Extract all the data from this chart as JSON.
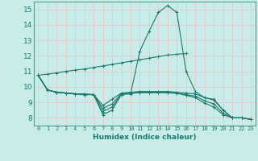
{
  "xlabel": "Humidex (Indice chaleur)",
  "ylabel": "",
  "bg_color": "#c8ecea",
  "grid_color": "#e8c8c8",
  "line_color": "#1a7a6e",
  "xlim": [
    -0.5,
    23.5
  ],
  "ylim": [
    7.5,
    15.5
  ],
  "yticks": [
    8,
    9,
    10,
    11,
    12,
    13,
    14,
    15
  ],
  "xticks": [
    0,
    1,
    2,
    3,
    4,
    5,
    6,
    7,
    8,
    9,
    10,
    11,
    12,
    13,
    14,
    15,
    16,
    17,
    18,
    19,
    20,
    21,
    22,
    23
  ],
  "lines": [
    {
      "x": [
        0,
        1,
        2,
        3,
        4,
        5,
        6,
        7,
        8,
        9,
        10,
        11,
        12,
        13,
        14,
        15,
        16
      ],
      "y": [
        10.75,
        10.82,
        10.9,
        11.0,
        11.08,
        11.15,
        11.25,
        11.35,
        11.45,
        11.55,
        11.65,
        11.75,
        11.85,
        11.95,
        12.05,
        12.1,
        12.15
      ]
    },
    {
      "x": [
        0,
        1,
        2,
        3,
        4,
        5,
        6,
        7,
        8,
        9,
        10,
        11,
        12,
        13,
        14,
        15,
        16,
        17,
        18,
        19,
        20,
        21,
        22,
        23
      ],
      "y": [
        10.75,
        9.8,
        9.65,
        9.6,
        9.55,
        9.55,
        9.5,
        8.2,
        8.5,
        9.5,
        9.55,
        12.3,
        13.6,
        14.8,
        15.25,
        14.8,
        11.0,
        9.7,
        9.3,
        9.2,
        8.5,
        8.0,
        8.0,
        7.9
      ]
    },
    {
      "x": [
        0,
        1,
        2,
        3,
        4,
        5,
        6,
        7,
        8,
        9,
        10,
        11,
        12,
        13,
        14,
        15,
        16,
        17,
        18,
        19,
        20,
        21,
        22,
        23
      ],
      "y": [
        10.75,
        9.8,
        9.65,
        9.6,
        9.55,
        9.5,
        9.5,
        8.8,
        9.2,
        9.6,
        9.65,
        9.7,
        9.7,
        9.7,
        9.7,
        9.65,
        9.6,
        9.55,
        9.3,
        9.15,
        8.5,
        8.0,
        8.0,
        7.9
      ]
    },
    {
      "x": [
        0,
        1,
        2,
        3,
        4,
        5,
        6,
        7,
        8,
        9,
        10,
        11,
        12,
        13,
        14,
        15,
        16,
        17,
        18,
        19,
        20,
        21,
        22,
        23
      ],
      "y": [
        10.75,
        9.8,
        9.65,
        9.6,
        9.55,
        9.5,
        9.5,
        8.6,
        8.9,
        9.55,
        9.6,
        9.65,
        9.65,
        9.65,
        9.65,
        9.6,
        9.5,
        9.4,
        9.1,
        8.9,
        8.3,
        8.0,
        8.0,
        7.9
      ]
    },
    {
      "x": [
        0,
        1,
        2,
        3,
        4,
        5,
        6,
        7,
        8,
        9,
        10,
        11,
        12,
        13,
        14,
        15,
        16,
        17,
        18,
        19,
        20,
        21,
        22,
        23
      ],
      "y": [
        10.75,
        9.8,
        9.65,
        9.6,
        9.55,
        9.5,
        9.5,
        8.4,
        8.7,
        9.52,
        9.58,
        9.62,
        9.62,
        9.62,
        9.62,
        9.58,
        9.45,
        9.3,
        8.95,
        8.7,
        8.2,
        8.0,
        8.0,
        7.9
      ]
    }
  ],
  "marker": "+",
  "markersize": 3,
  "linewidth": 0.8
}
